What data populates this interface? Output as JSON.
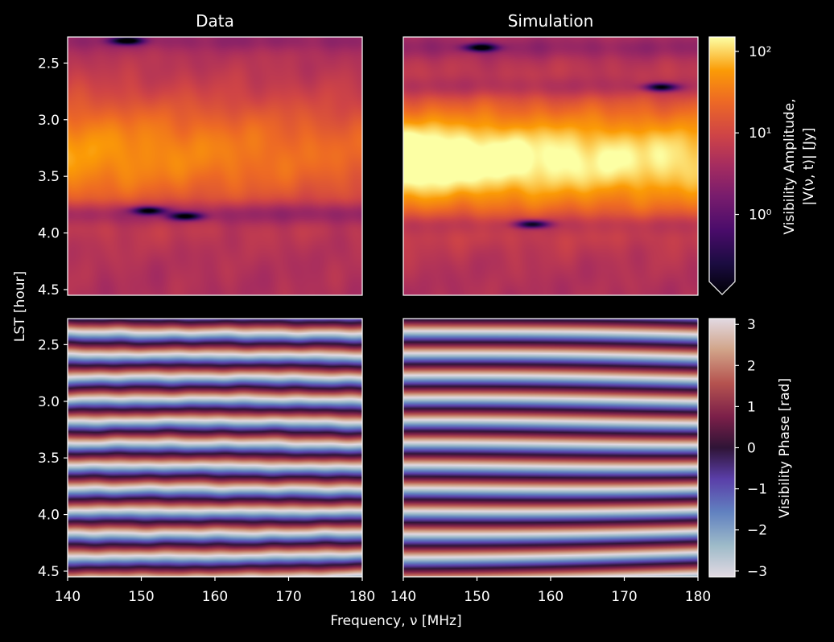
{
  "figure": {
    "panel_titles": [
      "Data",
      "Simulation"
    ],
    "ylabel": "LST [hour]",
    "xlabel": "Frequency, ν [MHz]",
    "amp_colorbar_label_line1": "Visibility Amplitude,",
    "amp_colorbar_label_line2": "|V(ν, t)| [Jy]",
    "phase_colorbar_label": "Visibility Phase [rad]",
    "background": "#000000"
  },
  "chart_data": [
    {
      "type": "heatmap",
      "panel": "amplitude-data",
      "title": "Data",
      "xlabel": "",
      "ylabel": "LST [hour]",
      "xlim": [
        140,
        180
      ],
      "ylim": [
        4.55,
        2.27
      ],
      "x_ticks": [
        140,
        150,
        160,
        170,
        180
      ],
      "y_ticks": [
        "2.5",
        "3.0",
        "3.5",
        "4.0",
        "4.5"
      ],
      "colormap": "inferno",
      "color_scale": "log",
      "value_range": [
        0.15,
        150
      ],
      "note_peak_lst": 3.3,
      "dark_nulls": [
        {
          "freq": 148,
          "lst": 2.3
        },
        {
          "freq": 151,
          "lst": 3.8
        },
        {
          "freq": 156,
          "lst": 3.85
        }
      ]
    },
    {
      "type": "heatmap",
      "panel": "amplitude-simulation",
      "title": "Simulation",
      "xlim": [
        140,
        180
      ],
      "ylim": [
        4.55,
        2.27
      ],
      "colormap": "inferno",
      "color_scale": "log",
      "value_range": [
        0.15,
        150
      ],
      "note_peak_lst": 3.35,
      "dark_nulls": [
        {
          "freq": 150.5,
          "lst": 2.36
        },
        {
          "freq": 175,
          "lst": 2.71
        },
        {
          "freq": 157.5,
          "lst": 3.92
        }
      ]
    },
    {
      "type": "heatmap",
      "panel": "phase-data",
      "xlim": [
        140,
        180
      ],
      "ylim": [
        4.55,
        2.27
      ],
      "x_ticks": [
        140,
        150,
        160,
        170,
        180
      ],
      "y_ticks": [
        "2.5",
        "3.0",
        "3.5",
        "4.0",
        "4.5"
      ],
      "colormap": "twilight_shifted",
      "value_range": [
        -3.14159,
        3.14159
      ],
      "fringe_period_hours": 0.2
    },
    {
      "type": "heatmap",
      "panel": "phase-simulation",
      "xlim": [
        140,
        180
      ],
      "ylim": [
        4.55,
        2.27
      ],
      "x_ticks": [
        140,
        150,
        160,
        170,
        180
      ],
      "colormap": "twilight_shifted",
      "value_range": [
        -3.14159,
        3.14159
      ],
      "fringe_period_hours": 0.2
    },
    {
      "type": "colorbar",
      "panel": "amplitude-colorbar",
      "scale": "log",
      "range": [
        0.15,
        150
      ],
      "tick_values": [
        1,
        10,
        100
      ],
      "tick_labels": [
        "10⁰",
        "10¹",
        "10²"
      ],
      "extend": "min"
    },
    {
      "type": "colorbar",
      "panel": "phase-colorbar",
      "range": [
        -3.14159,
        3.14159
      ],
      "tick_values": [
        -3,
        -2,
        -1,
        0,
        1,
        2,
        3
      ],
      "tick_labels": [
        "−3",
        "−2",
        "−1",
        "0",
        "1",
        "2",
        "3"
      ]
    }
  ]
}
